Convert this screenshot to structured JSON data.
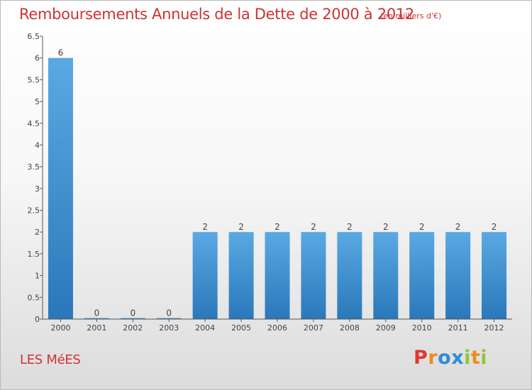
{
  "header": {
    "title": "Remboursements Annuels de la Dette de 2000 à 2012",
    "unit": "(en milliers d'€)"
  },
  "footer": {
    "city": "LES MéES",
    "logo": "Proxiti"
  },
  "colors": {
    "title": "#cc3333",
    "bar_top": "#5aa9e3",
    "bar_bottom": "#2a78ba",
    "axis": "#555555",
    "logo_letters": [
      "#e0392f",
      "#f08a1c",
      "#2e8bd6",
      "#2e8bd6",
      "#8cc63f",
      "#f08a1c",
      "#8cc63f"
    ]
  },
  "chart_data": {
    "type": "bar",
    "categories": [
      "2000",
      "2001",
      "2002",
      "2003",
      "2004",
      "2005",
      "2006",
      "2007",
      "2008",
      "2009",
      "2010",
      "2011",
      "2012"
    ],
    "values": [
      6,
      0,
      0,
      0,
      2,
      2,
      2,
      2,
      2,
      2,
      2,
      2,
      2
    ],
    "data_labels": [
      "6",
      "0",
      "0",
      "0",
      "2",
      "2",
      "2",
      "2",
      "2",
      "2",
      "2",
      "2",
      "2"
    ],
    "yticks": [
      0,
      0.5,
      1,
      1.5,
      2,
      2.5,
      3,
      3.5,
      4,
      4.5,
      5,
      5.5,
      6,
      6.5
    ],
    "ytick_labels": [
      "0",
      "0.5",
      "1",
      "1.5",
      "2",
      "2.5",
      "3",
      "3.5",
      "4",
      "4.5",
      "5",
      "5.5",
      "6",
      "6.5"
    ],
    "ylim": [
      0,
      6.5
    ],
    "grid": false,
    "legend": "none"
  }
}
